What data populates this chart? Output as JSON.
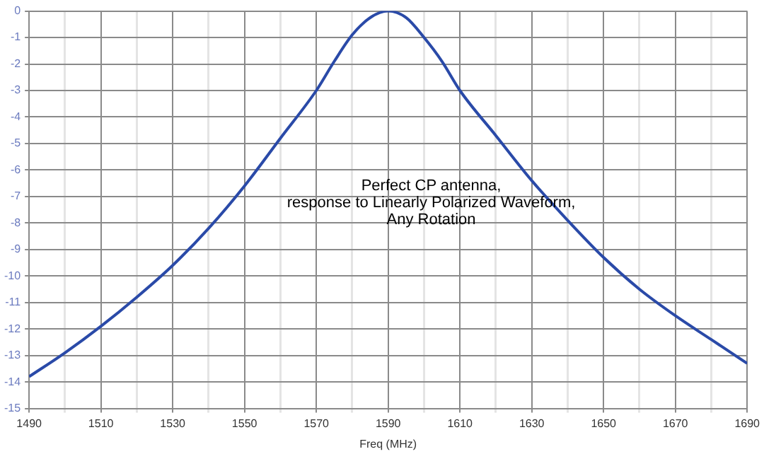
{
  "chart_data": {
    "type": "line",
    "xlabel": "Freq (MHz)",
    "annotations": [
      "Perfect CP antenna,\nresponse to Linearly Polarized Waveform,\nAny Rotation"
    ],
    "x": [
      1490,
      1500,
      1510,
      1520,
      1530,
      1540,
      1550,
      1560,
      1570,
      1575,
      1580,
      1585,
      1590,
      1595,
      1600,
      1605,
      1610,
      1620,
      1630,
      1640,
      1650,
      1660,
      1670,
      1680,
      1690
    ],
    "series": [
      {
        "color": "#2a4aa8",
        "values": [
          -13.8,
          -12.9,
          -11.9,
          -10.8,
          -9.6,
          -8.2,
          -6.6,
          -4.8,
          -3.0,
          -1.9,
          -0.9,
          -0.25,
          0,
          -0.25,
          -1.0,
          -1.9,
          -3.0,
          -4.7,
          -6.4,
          -7.9,
          -9.3,
          -10.5,
          -11.5,
          -12.4,
          -13.3
        ]
      }
    ],
    "xlim": [
      1490,
      1690
    ],
    "xticks": [
      1490,
      {
        "value": 1500,
        "label": null
      },
      1510,
      {
        "value": 1520,
        "label": null
      },
      1530,
      {
        "value": 1540,
        "label": null
      },
      1550,
      {
        "value": 1560,
        "label": null
      },
      1570,
      {
        "value": 1580,
        "label": null
      },
      1590,
      {
        "value": 1600,
        "label": null
      },
      1610,
      {
        "value": 1620,
        "label": null
      },
      1630,
      {
        "value": 1640,
        "label": null
      },
      1650,
      {
        "value": 1660,
        "label": null
      },
      1670,
      {
        "value": 1680,
        "label": null
      },
      1690
    ],
    "ylim": [
      -15,
      0
    ],
    "yticks": [
      -15,
      -14,
      -13,
      -12,
      -11,
      -10,
      -9,
      -8,
      -7,
      -6,
      -5,
      -4,
      -3,
      -2,
      -1,
      0
    ],
    "grid": true,
    "legend": false,
    "marker": "none",
    "line_style": "solid"
  }
}
